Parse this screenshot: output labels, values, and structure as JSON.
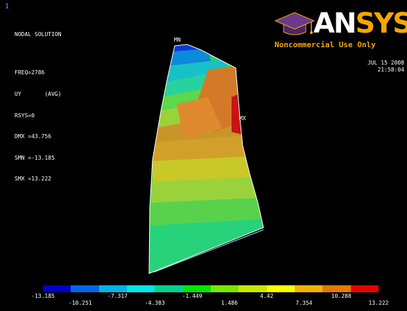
{
  "window_number": "1",
  "header": {
    "title": "NODAL SOLUTION",
    "freq": "FREQ=2786",
    "result": "UY       (AVG)",
    "rsys": "RSYS=0",
    "dmx": "DMX =43.756",
    "smn": "SMN =-13.185",
    "smx": "SMX =13.222"
  },
  "logo": {
    "text_an": "AN",
    "text_sys": "SYS",
    "subtitle": "Noncommercial Use Only"
  },
  "timestamp": {
    "date": "JUL 15 2008",
    "time": "21:58:04"
  },
  "labels": {
    "min": "MN",
    "max": "MX"
  },
  "legend": {
    "colors": [
      "#0000c8",
      "#0066e6",
      "#00b4e6",
      "#00e6e6",
      "#00d28c",
      "#00e600",
      "#78e600",
      "#c8e600",
      "#ffff00",
      "#f0b400",
      "#e67800",
      "#e60000"
    ],
    "top_values": [
      "-13.185",
      "-7.317",
      "-1.449",
      "4.42",
      "10.288"
    ],
    "bottom_values": [
      "-10.251",
      "-4.383",
      "1.486",
      "7.354",
      "13.222"
    ]
  }
}
